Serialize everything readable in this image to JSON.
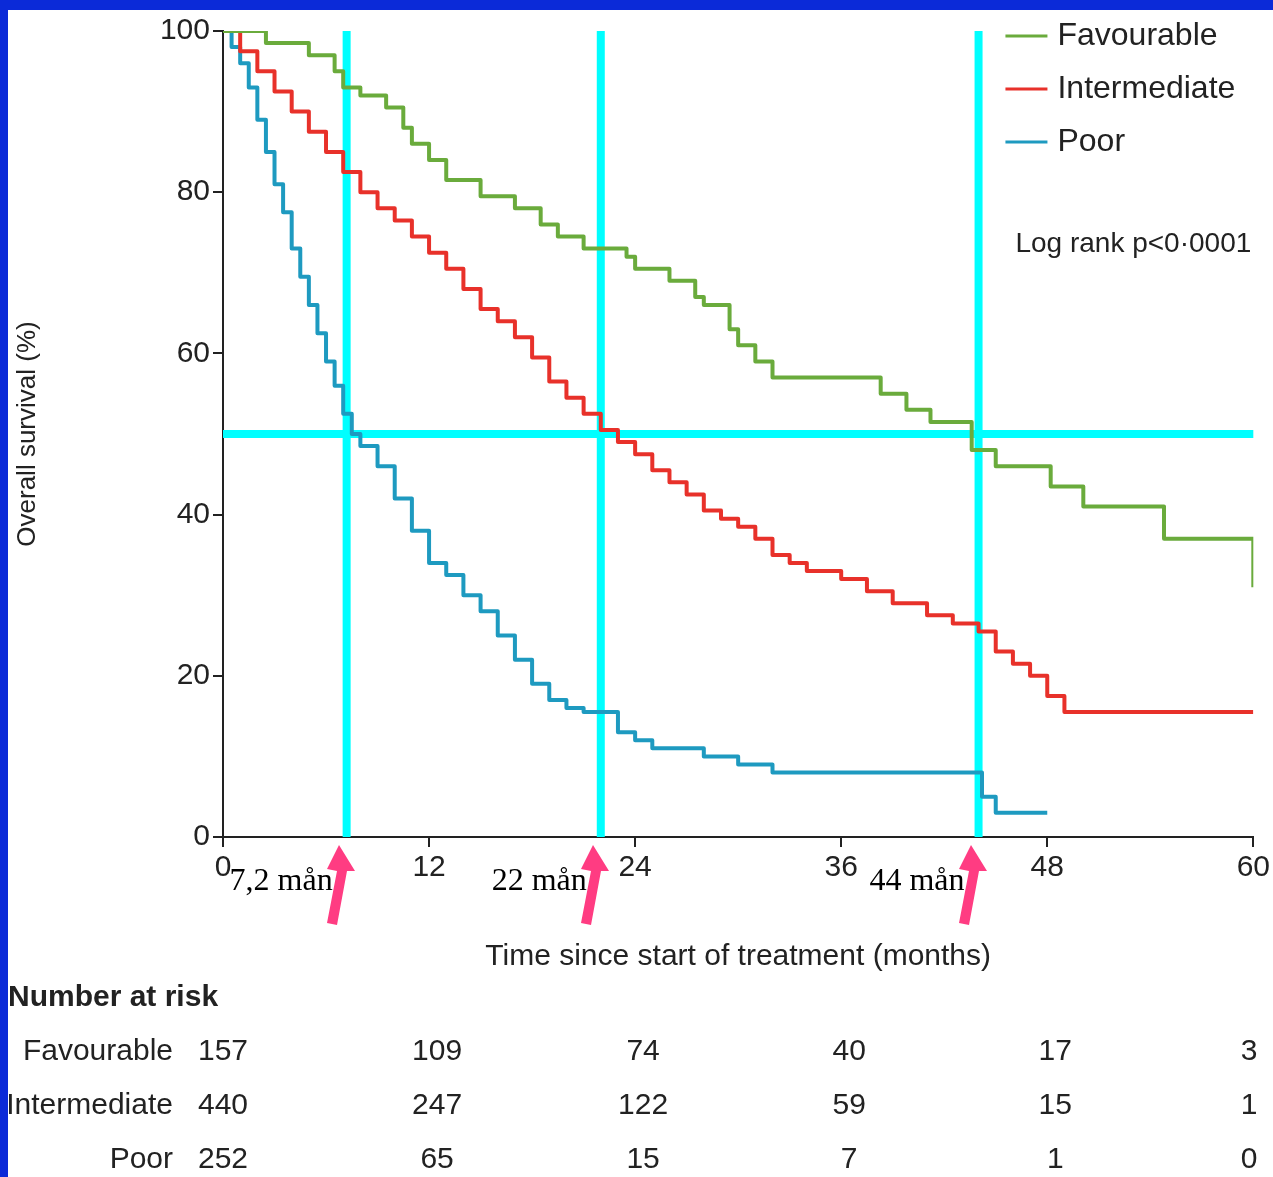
{
  "chart_data": {
    "type": "step",
    "xlabel": "Time since start of treatment (months)",
    "ylabel": "Overall survival (%)",
    "xlim": [
      0,
      60
    ],
    "xticks": [
      0,
      12,
      24,
      36,
      48,
      60
    ],
    "ylim": [
      0,
      100
    ],
    "yticks": [
      0,
      20,
      40,
      60,
      80,
      100
    ],
    "grid": false,
    "legend": "top right",
    "line_style": "solid",
    "marker": "none",
    "series": [
      {
        "name": "Favourable",
        "color": "#6aab3c",
        "x": [
          0,
          2.5,
          5,
          6.5,
          7,
          8,
          9.5,
          10.5,
          11,
          12,
          13,
          15,
          17,
          18.5,
          19.5,
          21,
          23.5,
          24,
          26,
          27.5,
          28,
          29.5,
          30,
          31,
          32,
          38.3,
          39.8,
          41.2,
          43.6,
          45,
          48.2,
          50.1,
          54.8,
          60
        ],
        "values": [
          100,
          98.5,
          97,
          95,
          93,
          92,
          90.5,
          88,
          86,
          84,
          81.5,
          79.5,
          78,
          76,
          74.5,
          73,
          72,
          70.5,
          69,
          67,
          66,
          63,
          61,
          59,
          57,
          55,
          53,
          51.5,
          48,
          46,
          43.5,
          41,
          37,
          31
        ]
      },
      {
        "name": "Intermediate",
        "color": "#e8312a",
        "x": [
          0,
          1,
          2,
          3,
          4,
          5,
          6,
          7,
          8,
          9,
          10,
          11,
          12,
          13,
          14,
          15,
          16,
          17,
          18,
          19,
          20,
          21,
          22,
          23,
          24,
          25,
          26,
          27,
          28,
          29,
          30,
          31,
          32,
          33,
          34,
          36,
          37.5,
          39,
          41,
          42.5,
          44,
          45,
          46,
          47,
          48,
          49,
          60
        ],
        "values": [
          100,
          97.5,
          95,
          92.5,
          90,
          87.5,
          85,
          82.5,
          80,
          78,
          76.5,
          74.5,
          72.5,
          70.5,
          68,
          65.5,
          64,
          62,
          59.5,
          56.5,
          54.5,
          52.5,
          50.5,
          49,
          47.5,
          45.5,
          44,
          42.5,
          40.5,
          39.5,
          38.5,
          37,
          35,
          34,
          33,
          32,
          30.5,
          29,
          27.5,
          26.5,
          25.5,
          23,
          21.5,
          20,
          17.5,
          15.5,
          15.5
        ]
      },
      {
        "name": "Poor",
        "color": "#1e9ac0",
        "x": [
          0,
          0.5,
          1,
          1.5,
          2,
          2.5,
          3,
          3.5,
          4,
          4.5,
          5,
          5.5,
          6,
          6.5,
          7,
          7.5,
          8,
          9,
          10,
          11,
          12,
          13,
          14,
          15,
          16,
          17,
          18,
          19,
          20,
          21,
          23,
          24,
          25,
          28,
          30,
          32,
          44,
          44.2,
          45,
          48
        ],
        "values": [
          100,
          98,
          96,
          93,
          89,
          85,
          81,
          77.5,
          73,
          69.5,
          66,
          62.5,
          59,
          56,
          52.5,
          50,
          48.5,
          46,
          42,
          38,
          34,
          32.5,
          30,
          28,
          25,
          22,
          19,
          17,
          16,
          15.5,
          13,
          12,
          11,
          10,
          9,
          8,
          8,
          5,
          3,
          3
        ]
      }
    ],
    "ref_lines": [
      {
        "axis": "y",
        "value": 50,
        "color": "#00ffff"
      },
      {
        "axis": "x",
        "value": 7.2,
        "label": "7,2 mån",
        "color": "#00ffff"
      },
      {
        "axis": "x",
        "value": 22,
        "label": "22 mån",
        "color": "#00ffff"
      },
      {
        "axis": "x",
        "value": 44,
        "label": "44 mån",
        "color": "#00ffff"
      }
    ],
    "annotations": [
      "Log rank p<0·0001",
      "Number at risk",
      "Favourable",
      "157",
      "109",
      "74",
      "40",
      "17",
      "3",
      "Intermediate",
      "440",
      "247",
      "122",
      "59",
      "15",
      "1",
      "Poor",
      "252",
      "65",
      "15",
      "7",
      "1",
      "0"
    ]
  }
}
